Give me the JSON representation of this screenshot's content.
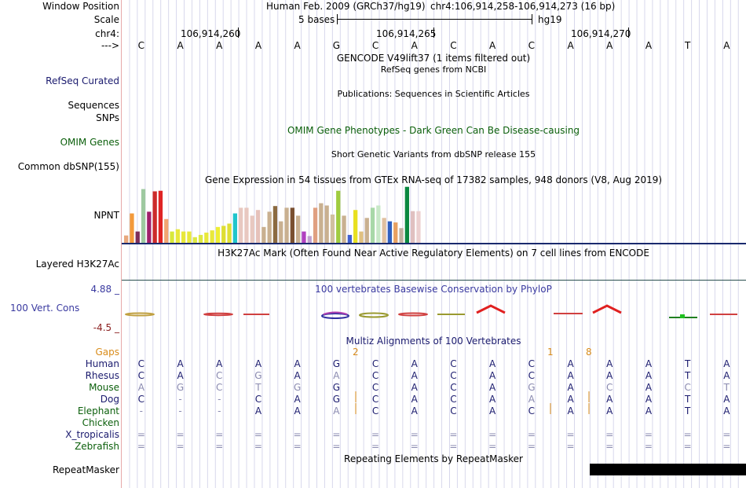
{
  "header": {
    "window_position_label": "Window Position",
    "scale_label": "Scale",
    "chrom_label": "chr4:",
    "arrow_label": "--->",
    "assembly_text": "Human Feb. 2009 (GRCh37/hg19)",
    "position_text": "chr4:106,914,258-106,914,273 (16 bp)",
    "scale_text": "5 bases",
    "scale_db": "hg19",
    "coords": [
      "106,914,260",
      "106,914,265",
      "106,914,270"
    ]
  },
  "sequence": [
    "C",
    "A",
    "A",
    "A",
    "A",
    "G",
    "C",
    "A",
    "C",
    "A",
    "C",
    "A",
    "A",
    "A",
    "T",
    "A"
  ],
  "tracks": {
    "gencode_title": "GENCODE V49lift37 (1 items filtered out)",
    "refseq_title": "RefSeq genes from NCBI",
    "refseq_label": "RefSeq Curated",
    "publications_title": "Publications: Sequences in Scientific Articles",
    "sequences_label": "Sequences",
    "snps_label": "SNPs",
    "omim_title": "OMIM Gene Phenotypes - Dark Green Can Be Disease-causing",
    "omim_label": "OMIM Genes",
    "dbsnp_title": "Short Genetic Variants from dbSNP release 155",
    "dbsnp_label": "Common dbSNP(155)",
    "gtex_title": "Gene Expression in 54 tissues from GTEx RNA-seq of 17382 samples, 948 donors (V8, Aug 2019)",
    "gtex_label": "NPNT",
    "h3k27ac_title": "H3K27Ac Mark (Often Found Near Active Regulatory Elements) on 7 cell lines from ENCODE",
    "h3k27ac_label": "Layered H3K27Ac",
    "phylop_max": "4.88 _",
    "phylop_min": "-4.5 _",
    "phylop_title": "100 vertebrates Basewise Conservation by PhyloP",
    "phylop_label": "100 Vert. Cons",
    "multiz_title": "Multiz Alignments of 100 Vertebrates",
    "gaps_label": "Gaps",
    "gap_counts": [
      "2",
      "1",
      "8"
    ],
    "repeat_title": "Repeating Elements by RepeatMasker",
    "repeat_label": "RepeatMasker"
  },
  "gtex_colors": [
    "#e8a87c",
    "#f39a3a",
    "#7e2f5a",
    "#9ec9a0",
    "#a01f6b",
    "#cc2a2a",
    "#e02525",
    "#f2a571",
    "#d8e83a",
    "#e8e83a",
    "#e8e83a",
    "#e8e83a",
    "#dde842",
    "#dde842",
    "#e8e83a",
    "#e8e83a",
    "#eeee33",
    "#dede33",
    "#e0e036",
    "#20c5cc",
    "#e8c8c0",
    "#e8c8c0",
    "#e8c8c0",
    "#e6c2bb",
    "#c9b090",
    "#c9b090",
    "#8b6a40",
    "#c9b090",
    "#c9b090",
    "#7a5030",
    "#c9b090",
    "#b040c0",
    "#c0a0d0",
    "#e0a080",
    "#c9b090",
    "#c9b090",
    "#d0c0a0",
    "#a0cc40",
    "#c9b090",
    "#4060d0",
    "#e8e020",
    "#e0c080",
    "#c9b090",
    "#a8d8a8",
    "#c8e8c8",
    "#e0c0a0",
    "#3060c0",
    "#e8a060",
    "#c0b0a0",
    "#0a8840",
    "#e0c0c0",
    "#ecd0d0"
  ],
  "gtex_values": [
    0.13,
    0.52,
    0.2,
    0.95,
    0.55,
    0.91,
    0.92,
    0.42,
    0.2,
    0.24,
    0.2,
    0.2,
    0.1,
    0.14,
    0.18,
    0.22,
    0.28,
    0.3,
    0.34,
    0.52,
    0.62,
    0.62,
    0.48,
    0.58,
    0.28,
    0.55,
    0.65,
    0.38,
    0.62,
    0.62,
    0.48,
    0.2,
    0.12,
    0.62,
    0.7,
    0.66,
    0.5,
    0.92,
    0.48,
    0.14,
    0.58,
    0.2,
    0.44,
    0.62,
    0.66,
    0.44,
    0.38,
    0.36,
    0.26,
    0.99,
    0.56,
    0.56
  ],
  "alignments": [
    {
      "species": "Human",
      "color": "#1a1a6e",
      "bases": [
        "C",
        "A",
        "A",
        "A",
        "A",
        "G",
        "C",
        "A",
        "C",
        "A",
        "C",
        "A",
        "A",
        "A",
        "T",
        "A"
      ],
      "dim": []
    },
    {
      "species": "Rhesus",
      "color": "#1a1a6e",
      "bases": [
        "C",
        "A",
        "C",
        "G",
        "A",
        "A",
        "C",
        "A",
        "C",
        "A",
        "C",
        "A",
        "A",
        "A",
        "T",
        "A"
      ],
      "dim": [
        2,
        3,
        5
      ]
    },
    {
      "species": "Mouse",
      "color": "#0b5f0b",
      "bases": [
        "A",
        "G",
        "C",
        "T",
        "G",
        "G",
        "C",
        "A",
        "C",
        "A",
        "G",
        "A",
        "C",
        "A",
        "C",
        "T"
      ],
      "dim": [
        0,
        1,
        2,
        3,
        4,
        10,
        12,
        14,
        15
      ]
    },
    {
      "species": "Dog",
      "color": "#1a1a6e",
      "bases": [
        "C",
        "-",
        "-",
        "C",
        "A",
        "G",
        "C",
        "A",
        "C",
        "A",
        "A",
        "A",
        "A",
        "A",
        "T",
        "A"
      ],
      "dim": [
        1,
        2,
        10
      ]
    },
    {
      "species": "Elephant",
      "color": "#0b5f0b",
      "bases": [
        "-",
        "-",
        "-",
        "A",
        "A",
        "A",
        "C",
        "A",
        "C",
        "A",
        "C",
        "A",
        "A",
        "A",
        "T",
        "A"
      ],
      "dim": [
        0,
        1,
        2,
        5
      ]
    },
    {
      "species": "Chicken",
      "color": "#0b5f0b",
      "bases": [],
      "dim": []
    },
    {
      "species": "X_tropicalis",
      "color": "#1a1a6e",
      "bases": [
        "=",
        "=",
        "=",
        "=",
        "=",
        "=",
        "=",
        "=",
        "=",
        "=",
        "=",
        "=",
        "=",
        "=",
        "=",
        "="
      ],
      "dim": []
    },
    {
      "species": "Zebrafish",
      "color": "#0b5f0b",
      "bases": [
        "=",
        "=",
        "=",
        "=",
        "=",
        "=",
        "=",
        "=",
        "=",
        "=",
        "=",
        "=",
        "=",
        "=",
        "=",
        "="
      ],
      "dim": []
    }
  ]
}
